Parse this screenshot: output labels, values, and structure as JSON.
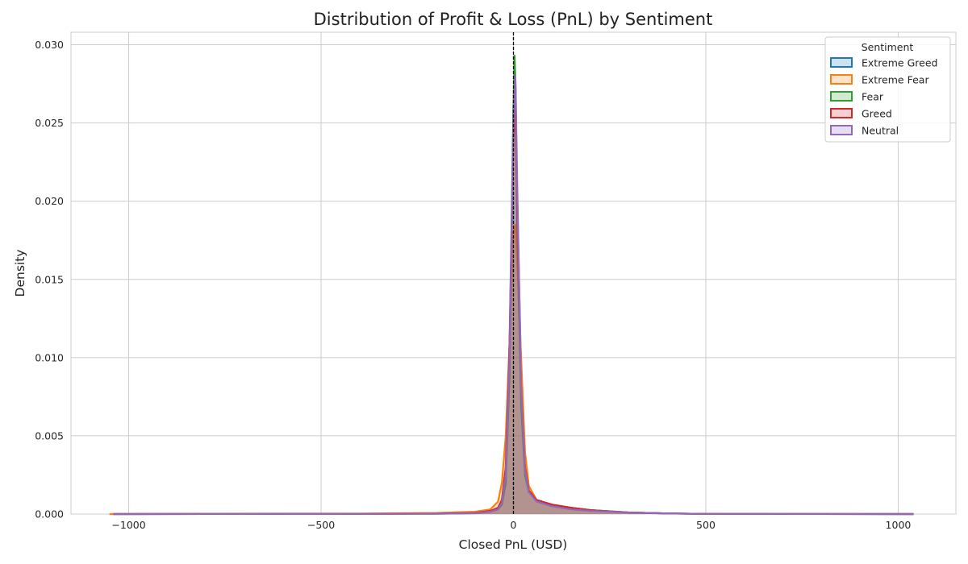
{
  "chart_data": {
    "type": "area",
    "title": "Distribution of Profit & Loss (PnL) by Sentiment",
    "xlabel": "Closed PnL (USD)",
    "ylabel": "Density",
    "xlim": [
      -1150,
      1150
    ],
    "ylim": [
      0,
      0.0308
    ],
    "xticks": [
      -1000,
      -500,
      0,
      500,
      1000
    ],
    "xtick_labels": [
      "−1000",
      "−500",
      "0",
      "500",
      "1000"
    ],
    "yticks": [
      0.0,
      0.005,
      0.01,
      0.015,
      0.02,
      0.025,
      0.03
    ],
    "ytick_labels": [
      "0.000",
      "0.005",
      "0.010",
      "0.015",
      "0.020",
      "0.025",
      "0.030"
    ],
    "grid": true,
    "reference_line": {
      "x": 0,
      "style": "dashed",
      "color": "#000000"
    },
    "legend": {
      "title": "Sentiment",
      "placement": "top-right"
    },
    "series": [
      {
        "name": "Extreme Greed",
        "color": "#1f77b4",
        "x": [
          -1040,
          -400,
          -200,
          -100,
          -60,
          -40,
          -30,
          -20,
          -10,
          0,
          5,
          10,
          20,
          30,
          40,
          60,
          100,
          150,
          200,
          300,
          400,
          500,
          1040
        ],
        "y": [
          0,
          1e-05,
          3e-05,
          8e-05,
          0.0002,
          0.0004,
          0.0009,
          0.003,
          0.011,
          0.026,
          0.027,
          0.02,
          0.009,
          0.003,
          0.0015,
          0.0009,
          0.0006,
          0.0004,
          0.00025,
          0.0001,
          4e-05,
          1e-05,
          0
        ]
      },
      {
        "name": "Extreme Fear",
        "color": "#ff7f0e",
        "x": [
          -1050,
          -800,
          -400,
          -200,
          -100,
          -60,
          -40,
          -30,
          -20,
          -10,
          0,
          5,
          10,
          20,
          30,
          40,
          60,
          100,
          150,
          200,
          300,
          400,
          500,
          1040
        ],
        "y": [
          0,
          2e-05,
          3e-05,
          7e-05,
          0.00015,
          0.0003,
          0.0008,
          0.002,
          0.005,
          0.011,
          0.018,
          0.0185,
          0.016,
          0.01,
          0.004,
          0.0018,
          0.0009,
          0.0006,
          0.0004,
          0.00025,
          0.0001,
          4e-05,
          1e-05,
          0
        ]
      },
      {
        "name": "Fear",
        "color": "#2ca02c",
        "x": [
          -1040,
          -400,
          -200,
          -100,
          -60,
          -40,
          -30,
          -20,
          -10,
          0,
          3,
          6,
          10,
          20,
          30,
          40,
          60,
          100,
          150,
          200,
          300,
          400,
          500,
          1040
        ],
        "y": [
          0,
          1e-05,
          2e-05,
          5e-05,
          0.00015,
          0.0003,
          0.0006,
          0.002,
          0.009,
          0.026,
          0.0293,
          0.027,
          0.018,
          0.007,
          0.0025,
          0.0014,
          0.0009,
          0.0006,
          0.0004,
          0.00025,
          0.0001,
          4e-05,
          1e-05,
          0
        ]
      },
      {
        "name": "Greed",
        "color": "#d62728",
        "x": [
          -1040,
          -400,
          -200,
          -100,
          -60,
          -40,
          -30,
          -20,
          -10,
          0,
          5,
          10,
          20,
          30,
          40,
          60,
          100,
          150,
          200,
          300,
          400,
          500,
          1040
        ],
        "y": [
          0,
          1e-05,
          3e-05,
          8e-05,
          0.0002,
          0.0004,
          0.0009,
          0.003,
          0.011,
          0.024,
          0.026,
          0.019,
          0.008,
          0.003,
          0.0015,
          0.0009,
          0.0006,
          0.0004,
          0.00025,
          0.0001,
          4e-05,
          1e-05,
          0
        ]
      },
      {
        "name": "Neutral",
        "color": "#9467bd",
        "x": [
          -1040,
          -400,
          -200,
          -100,
          -60,
          -40,
          -30,
          -20,
          -10,
          0,
          5,
          10,
          20,
          30,
          40,
          60,
          100,
          150,
          200,
          300,
          400,
          500,
          1040
        ],
        "y": [
          0,
          1e-05,
          2e-05,
          6e-05,
          0.00015,
          0.0003,
          0.0007,
          0.0025,
          0.01,
          0.025,
          0.028,
          0.021,
          0.008,
          0.0028,
          0.0014,
          0.0008,
          0.0005,
          0.0003,
          0.0002,
          0.0001,
          4e-05,
          1e-05,
          0
        ]
      }
    ]
  }
}
